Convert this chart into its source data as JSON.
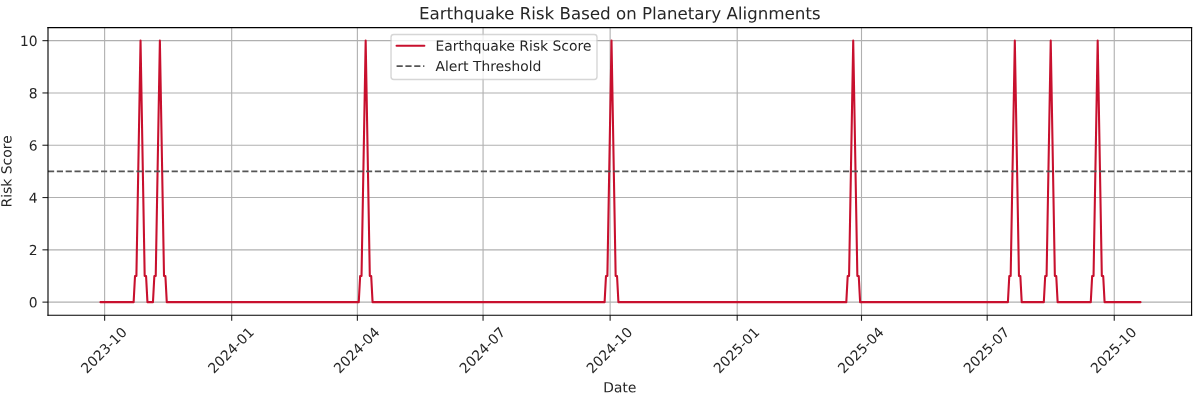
{
  "chart_data": {
    "type": "line",
    "title": "Earthquake Risk Based on Planetary Alignments",
    "xlabel": "Date",
    "ylabel": "Risk Score",
    "series": [
      {
        "name": "Earthquake Risk Score",
        "color": "#c8102e",
        "x": [
          "2023-09-28",
          "2023-10-22",
          "2023-10-23",
          "2023-10-24",
          "2023-10-27",
          "2023-10-30",
          "2023-10-31",
          "2023-11-01",
          "2023-11-05",
          "2023-11-06",
          "2023-11-07",
          "2023-11-10",
          "2023-11-13",
          "2023-11-14",
          "2023-11-15",
          "2024-04-02",
          "2024-04-03",
          "2024-04-04",
          "2024-04-07",
          "2024-04-10",
          "2024-04-11",
          "2024-04-12",
          "2024-09-27",
          "2024-09-28",
          "2024-09-29",
          "2024-10-02",
          "2024-10-05",
          "2024-10-06",
          "2024-10-07",
          "2025-03-21",
          "2025-03-22",
          "2025-03-23",
          "2025-03-26",
          "2025-03-29",
          "2025-03-30",
          "2025-03-31",
          "2025-07-16",
          "2025-07-17",
          "2025-07-18",
          "2025-07-21",
          "2025-07-24",
          "2025-07-25",
          "2025-07-26",
          "2025-08-11",
          "2025-08-12",
          "2025-08-13",
          "2025-08-16",
          "2025-08-19",
          "2025-08-20",
          "2025-08-21",
          "2025-09-14",
          "2025-09-15",
          "2025-09-16",
          "2025-09-19",
          "2025-09-22",
          "2025-09-23",
          "2025-09-24",
          "2025-10-20"
        ],
        "values": [
          0,
          0,
          1,
          1,
          10,
          1,
          1,
          0,
          0,
          1,
          1,
          10,
          1,
          1,
          0,
          0,
          1,
          1,
          10,
          1,
          1,
          0,
          0,
          1,
          1,
          10,
          1,
          1,
          0,
          0,
          1,
          1,
          10,
          1,
          1,
          0,
          0,
          1,
          1,
          10,
          1,
          1,
          0,
          0,
          1,
          1,
          10,
          1,
          1,
          0,
          0,
          1,
          1,
          10,
          1,
          1,
          0,
          0
        ]
      }
    ],
    "ref_lines": [
      {
        "axis": "y",
        "value": 5,
        "label": "Alert Threshold",
        "color": "#555555",
        "line_style": "dashed"
      }
    ],
    "xlim": [
      "2023-08-21",
      "2025-11-26"
    ],
    "xticks": [
      "2023-10",
      "2024-01",
      "2024-04",
      "2024-07",
      "2024-10",
      "2025-01",
      "2025-04",
      "2025-07",
      "2025-10"
    ],
    "ylim": [
      -0.5,
      10.5
    ],
    "yticks": [
      0,
      2,
      4,
      6,
      8,
      10
    ],
    "grid": true,
    "legend": "top",
    "marker": "none",
    "line_style": "solid"
  }
}
